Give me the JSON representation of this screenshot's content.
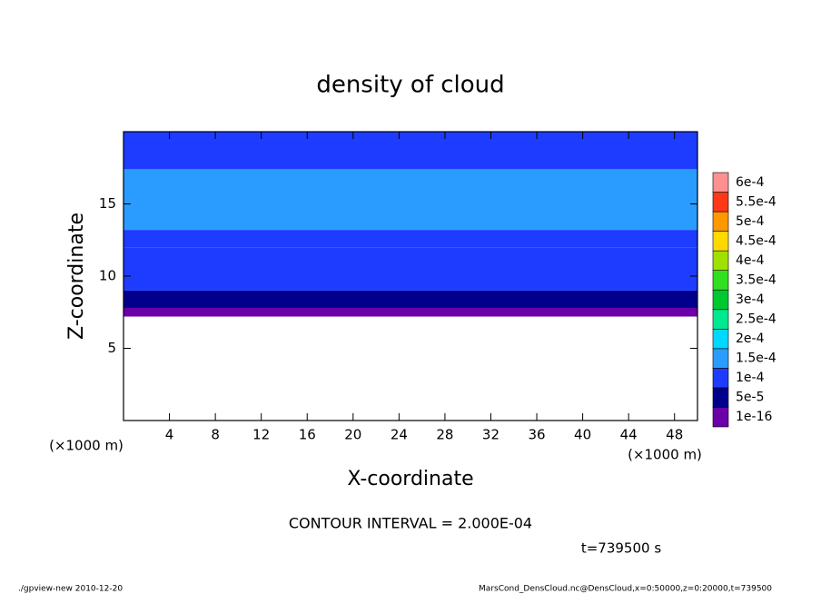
{
  "chart_data": {
    "type": "contour",
    "title": "density of cloud",
    "xlabel": "X-coordinate",
    "ylabel": "Z-coordinate",
    "x_units": "(×1000 m)",
    "y_units": "(×1000 m)",
    "xlim": [
      0,
      50
    ],
    "ylim": [
      0,
      20
    ],
    "xticks": [
      4,
      8,
      12,
      16,
      20,
      24,
      28,
      32,
      36,
      40,
      44,
      48
    ],
    "yticks": [
      5,
      10,
      15
    ],
    "z": [
      7.2,
      7.8,
      9,
      12,
      13.2,
      17.4,
      20
    ],
    "values": [
      2e-05,
      7e-05,
      0.00012,
      0.00013,
      0.00016,
      0.00012
    ],
    "levels": [
      {
        "value": 1e-16,
        "label": "1e-16"
      },
      {
        "value": 5e-05,
        "label": "5e-5"
      },
      {
        "value": 0.0001,
        "label": "1e-4"
      },
      {
        "value": 0.00015,
        "label": "1.5e-4"
      },
      {
        "value": 0.0002,
        "label": "2e-4"
      },
      {
        "value": 0.00025,
        "label": "2.5e-4"
      },
      {
        "value": 0.0003,
        "label": "3e-4"
      },
      {
        "value": 0.00035,
        "label": "3.5e-4"
      },
      {
        "value": 0.0004,
        "label": "4e-4"
      },
      {
        "value": 0.00045,
        "label": "4.5e-4"
      },
      {
        "value": 0.0005,
        "label": "5e-4"
      },
      {
        "value": 0.00055,
        "label": "5.5e-4"
      },
      {
        "value": 0.0006,
        "label": "6e-4"
      }
    ],
    "level_colors": [
      "#6a00a8",
      "#00008c",
      "#1e3cff",
      "#2a9cff",
      "#00d8ff",
      "#00e890",
      "#00c830",
      "#30e020",
      "#a0e000",
      "#ffd800",
      "#ff9800",
      "#ff3818",
      "#ff9090"
    ],
    "contour_interval": "CONTOUR INTERVAL = 2.000E-04",
    "time_label": "t=739500 s",
    "footer_left": "./gpview-new  2010-12-20",
    "footer_right": "MarsCond_DensCloud.nc@DensCloud,x=0:50000,z=0:20000,t=739500"
  }
}
